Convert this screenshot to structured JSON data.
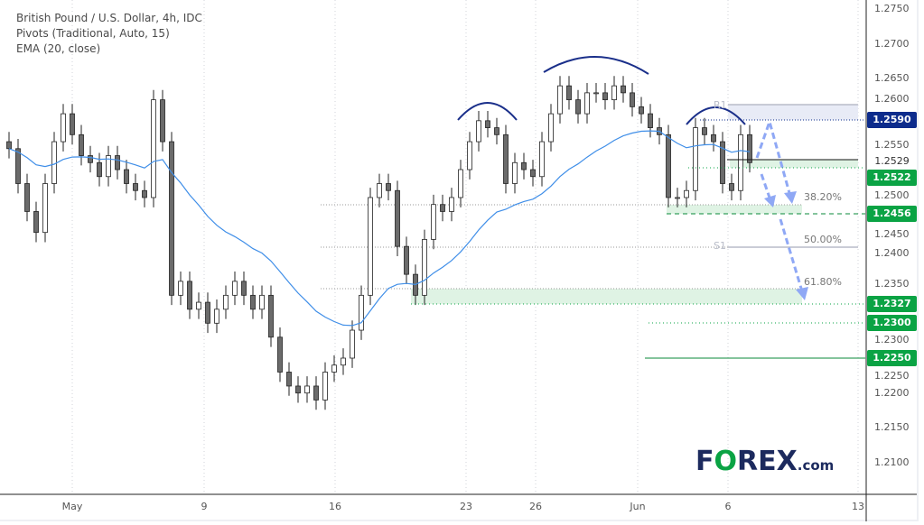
{
  "legend": {
    "symbol": "British Pound / U.S. Dollar, 4h, IDC",
    "pivots": "Pivots (Traditional, Auto, 15)",
    "ema": "EMA (20, close)"
  },
  "colors": {
    "bull": "#ffffff",
    "bear": "#6b6b6b",
    "wick": "#222222",
    "ema": "#3f8ee8",
    "navy": "#0d2c8c",
    "green": "#0aa344",
    "zone_green": "#dff3e4",
    "zone_blue": "#e8ebf6",
    "arrow": "#8fa8f5",
    "arc": "#1a2f8a",
    "logo_navy": "#1c2a5e"
  },
  "chart_data": {
    "type": "candlestick",
    "title": "British Pound / U.S. Dollar, 4h, IDC",
    "ylim": [
      1.2075,
      1.276
    ],
    "y_ticks": [
      "1.2750",
      "1.2700",
      "1.2650",
      "1.2600",
      "1.2550",
      "1.2500",
      "1.2450",
      "1.2400",
      "1.2350",
      "1.2300",
      "1.2250",
      "1.2200",
      "1.2150",
      "1.2100"
    ],
    "x_ticks": [
      "May",
      "9",
      "16",
      "23",
      "26",
      "Jun",
      "6",
      "13"
    ],
    "closes": [
      1.255,
      1.25,
      1.246,
      1.243,
      1.25,
      1.256,
      1.26,
      1.257,
      1.254,
      1.253,
      1.251,
      1.254,
      1.252,
      1.25,
      1.249,
      1.248,
      1.262,
      1.256,
      1.234,
      1.236,
      1.232,
      1.233,
      1.23,
      1.232,
      1.234,
      1.236,
      1.234,
      1.232,
      1.234,
      1.228,
      1.223,
      1.221,
      1.22,
      1.221,
      1.219,
      1.223,
      1.224,
      1.225,
      1.229,
      1.234,
      1.248,
      1.25,
      1.249,
      1.241,
      1.237,
      1.234,
      1.242,
      1.247,
      1.246,
      1.248,
      1.252,
      1.256,
      1.259,
      1.258,
      1.257,
      1.25,
      1.253,
      1.252,
      1.251,
      1.256,
      1.26,
      1.264,
      1.262,
      1.26,
      1.263,
      1.263,
      1.262,
      1.264,
      1.263,
      1.261,
      1.26,
      1.258,
      1.257,
      1.248,
      1.248,
      1.249,
      1.258,
      1.257,
      1.256,
      1.25,
      1.249,
      1.257,
      1.253
    ],
    "indicators": [
      "EMA 20"
    ],
    "pivots": {
      "R1": "R1",
      "S1": "S1"
    },
    "fib_labels": [
      "38.20%",
      "50.00%",
      "61.80%"
    ],
    "price_labels": [
      {
        "value": "1.2590",
        "color": "navy"
      },
      {
        "value": "1.2529",
        "color": "none"
      },
      {
        "value": "1.2522",
        "color": "green"
      },
      {
        "value": "1.2456",
        "color": "green"
      },
      {
        "value": "1.2327",
        "color": "green"
      },
      {
        "value": "1.2300",
        "color": "green"
      },
      {
        "value": "1.2250",
        "color": "green"
      }
    ]
  },
  "logo": {
    "brand": "FOREX",
    "suffix": ".com"
  }
}
